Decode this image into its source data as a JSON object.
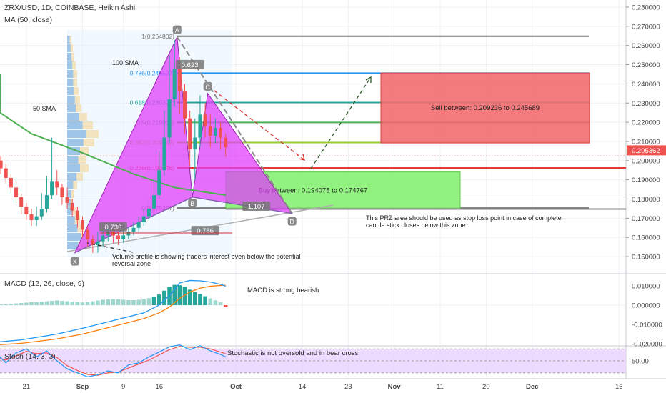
{
  "header": {
    "symbol_line": "ZRX/USD, 1D, COINBASE, Heikin Ashi",
    "indicator_line": "MA (50, close)"
  },
  "colors": {
    "up": "#26a69a",
    "down": "#ef5350",
    "harmonic_fill": "#e040fb",
    "sell_box": "#f26b6f",
    "buy_box": "#7ef06a",
    "ma50": "#4caf50",
    "fib_0786": "#2196f3",
    "fib_0618": "#26a69a",
    "fib_05": "#4caf50",
    "fib_0382": "#9acd32",
    "fib_0236": "#e53935",
    "fib_1": "#787878",
    "price_tag": "#ef5350",
    "stoch_bg": "#e6ccff"
  },
  "chart_data": [
    {
      "type": "candlestick",
      "title": "ZRX/USD, 1D, COINBASE, Heikin Ashi",
      "ylim": [
        0.141,
        0.284
      ],
      "y_ticks": [
        "0.280000",
        "0.270000",
        "0.260000",
        "0.250000",
        "0.240000",
        "0.230000",
        "0.220000",
        "0.210000",
        "0.200000",
        "0.190000",
        "0.180000",
        "0.170000",
        "0.160000",
        "0.150000"
      ],
      "y_tick_values": [
        0.28,
        0.27,
        0.26,
        0.25,
        0.24,
        0.23,
        0.22,
        0.21,
        0.2,
        0.19,
        0.18,
        0.17,
        0.16,
        0.15
      ],
      "x_ticks": [
        "21",
        "Sep",
        "9",
        "16",
        "Oct",
        "14",
        "23",
        "Nov",
        "11",
        "20",
        "Dec",
        "16"
      ],
      "x_tick_days": [
        -11,
        0,
        8,
        15,
        30,
        43,
        52,
        61,
        70,
        79,
        88,
        105
      ],
      "current_price": "0.205362",
      "current_price_value": 0.205362,
      "candles": [
        {
          "d": -19,
          "o": 0.195,
          "c": 0.2,
          "h": 0.203,
          "l": 0.193
        },
        {
          "d": -18,
          "o": 0.2,
          "c": 0.203,
          "h": 0.205,
          "l": 0.197
        },
        {
          "d": -17,
          "o": 0.203,
          "c": 0.2,
          "h": 0.206,
          "l": 0.197
        },
        {
          "d": -16,
          "o": 0.2,
          "c": 0.196,
          "h": 0.202,
          "l": 0.193
        },
        {
          "d": -15,
          "o": 0.196,
          "c": 0.191,
          "h": 0.198,
          "l": 0.188
        },
        {
          "d": -14,
          "o": 0.191,
          "c": 0.186,
          "h": 0.193,
          "l": 0.183
        },
        {
          "d": -13,
          "o": 0.186,
          "c": 0.181,
          "h": 0.189,
          "l": 0.178
        },
        {
          "d": -12,
          "o": 0.181,
          "c": 0.176,
          "h": 0.183,
          "l": 0.172
        },
        {
          "d": -11,
          "o": 0.176,
          "c": 0.172,
          "h": 0.178,
          "l": 0.169
        },
        {
          "d": -10,
          "o": 0.172,
          "c": 0.169,
          "h": 0.175,
          "l": 0.166
        },
        {
          "d": -9,
          "o": 0.169,
          "c": 0.171,
          "h": 0.176,
          "l": 0.166
        },
        {
          "d": -8,
          "o": 0.171,
          "c": 0.175,
          "h": 0.183,
          "l": 0.169
        },
        {
          "d": -7,
          "o": 0.175,
          "c": 0.182,
          "h": 0.192,
          "l": 0.173
        },
        {
          "d": -6,
          "o": 0.182,
          "c": 0.189,
          "h": 0.212,
          "l": 0.18
        },
        {
          "d": -5,
          "o": 0.189,
          "c": 0.186,
          "h": 0.195,
          "l": 0.182
        },
        {
          "d": -4,
          "o": 0.186,
          "c": 0.181,
          "h": 0.188,
          "l": 0.177
        },
        {
          "d": -3,
          "o": 0.181,
          "c": 0.178,
          "h": 0.186,
          "l": 0.175
        },
        {
          "d": -2,
          "o": 0.178,
          "c": 0.174,
          "h": 0.18,
          "l": 0.171
        },
        {
          "d": -1,
          "o": 0.174,
          "c": 0.169,
          "h": 0.176,
          "l": 0.165
        },
        {
          "d": 0,
          "o": 0.169,
          "c": 0.164,
          "h": 0.171,
          "l": 0.16
        },
        {
          "d": 1,
          "o": 0.164,
          "c": 0.159,
          "h": 0.166,
          "l": 0.155
        },
        {
          "d": 2,
          "o": 0.159,
          "c": 0.156,
          "h": 0.161,
          "l": 0.152
        },
        {
          "d": 3,
          "o": 0.156,
          "c": 0.158,
          "h": 0.163,
          "l": 0.152
        },
        {
          "d": 4,
          "o": 0.158,
          "c": 0.161,
          "h": 0.165,
          "l": 0.155
        },
        {
          "d": 5,
          "o": 0.161,
          "c": 0.163,
          "h": 0.167,
          "l": 0.158
        },
        {
          "d": 6,
          "o": 0.163,
          "c": 0.161,
          "h": 0.165,
          "l": 0.157
        },
        {
          "d": 7,
          "o": 0.161,
          "c": 0.159,
          "h": 0.163,
          "l": 0.156
        },
        {
          "d": 8,
          "o": 0.159,
          "c": 0.161,
          "h": 0.164,
          "l": 0.157
        },
        {
          "d": 9,
          "o": 0.161,
          "c": 0.163,
          "h": 0.165,
          "l": 0.159
        },
        {
          "d": 10,
          "o": 0.163,
          "c": 0.165,
          "h": 0.168,
          "l": 0.161
        },
        {
          "d": 11,
          "o": 0.165,
          "c": 0.168,
          "h": 0.171,
          "l": 0.163
        },
        {
          "d": 12,
          "o": 0.168,
          "c": 0.171,
          "h": 0.175,
          "l": 0.166
        },
        {
          "d": 13,
          "o": 0.171,
          "c": 0.175,
          "h": 0.18,
          "l": 0.169
        },
        {
          "d": 14,
          "o": 0.175,
          "c": 0.182,
          "h": 0.19,
          "l": 0.173
        },
        {
          "d": 15,
          "o": 0.182,
          "c": 0.195,
          "h": 0.205,
          "l": 0.18
        },
        {
          "d": 16,
          "o": 0.195,
          "c": 0.212,
          "h": 0.226,
          "l": 0.192
        },
        {
          "d": 17,
          "o": 0.212,
          "c": 0.232,
          "h": 0.255,
          "l": 0.209
        },
        {
          "d": 18,
          "o": 0.232,
          "c": 0.248,
          "h": 0.263,
          "l": 0.228
        },
        {
          "d": 19,
          "o": 0.248,
          "c": 0.236,
          "h": 0.254,
          "l": 0.224
        },
        {
          "d": 20,
          "o": 0.236,
          "c": 0.222,
          "h": 0.24,
          "l": 0.214
        },
        {
          "d": 21,
          "o": 0.222,
          "c": 0.206,
          "h": 0.226,
          "l": 0.197
        },
        {
          "d": 22,
          "o": 0.206,
          "c": 0.212,
          "h": 0.222,
          "l": 0.19
        },
        {
          "d": 23,
          "o": 0.212,
          "c": 0.224,
          "h": 0.234,
          "l": 0.207
        },
        {
          "d": 24,
          "o": 0.224,
          "c": 0.218,
          "h": 0.23,
          "l": 0.212
        },
        {
          "d": 25,
          "o": 0.218,
          "c": 0.213,
          "h": 0.224,
          "l": 0.207
        },
        {
          "d": 26,
          "o": 0.213,
          "c": 0.217,
          "h": 0.222,
          "l": 0.209
        },
        {
          "d": 27,
          "o": 0.217,
          "c": 0.212,
          "h": 0.22,
          "l": 0.206
        },
        {
          "d": 28,
          "o": 0.212,
          "c": 0.207,
          "h": 0.214,
          "l": 0.202
        }
      ],
      "ma50": [
        {
          "d": -40,
          "v": 0.245
        },
        {
          "d": -30,
          "v": 0.236
        },
        {
          "d": -20,
          "v": 0.225
        },
        {
          "d": -10,
          "v": 0.214
        },
        {
          "d": 0,
          "v": 0.204
        },
        {
          "d": 10,
          "v": 0.193
        },
        {
          "d": 18,
          "v": 0.186
        },
        {
          "d": 28,
          "v": 0.182
        }
      ],
      "harmonic": {
        "X": {
          "d": -1.5,
          "v": 0.152
        },
        "A": {
          "d": 18.5,
          "v": 0.2645
        },
        "B": {
          "d": 21.5,
          "v": 0.181
        },
        "C": {
          "d": 24.5,
          "v": 0.235
        },
        "D": {
          "d": 41,
          "v": 0.1725
        },
        "labels": [
          "X",
          "A",
          "B",
          "C",
          "D"
        ],
        "ratio_labels": [
          {
            "text": "0.736",
            "d": 6,
            "v": 0.165
          },
          {
            "text": "0.623",
            "d": 21,
            "v": 0.2495
          },
          {
            "text": "1.107",
            "d": 34,
            "v": 0.1757
          },
          {
            "text": "0.786",
            "d": 24,
            "v": 0.163
          }
        ]
      },
      "fib_levels": [
        {
          "label": "1(0.264802)",
          "value": 0.2648,
          "color_key": "fib_1"
        },
        {
          "label": "0.786(0.245597)",
          "value": 0.2456,
          "color_key": "fib_0786"
        },
        {
          "label": "0.618(0.230302)",
          "value": 0.2303,
          "color_key": "fib_0618"
        },
        {
          "label": "0.5(0.219915)",
          "value": 0.2199,
          "color_key": "fib_05"
        },
        {
          "label": "0.382(0.209342)",
          "value": 0.2094,
          "color_key": "fib_0382"
        },
        {
          "label": "0.236(0.196246)",
          "value": 0.1962,
          "color_key": "fib_0236"
        },
        {
          "label": "0(0.175257)",
          "value": 0.1753,
          "color_key": "fib_1"
        }
      ],
      "sell_zone": {
        "text": "Sell between: 0.209236 to 0.245689",
        "top": 0.2457,
        "bottom": 0.2092,
        "d_from": 48,
        "d_to": 82
      },
      "buy_zone": {
        "text": "Buy between: 0.194078 to 0.174767",
        "top": 0.1941,
        "bottom": 0.1748,
        "d_from": 28,
        "d_to": 66
      },
      "annotations": {
        "sma100": "100 SMA",
        "sma50": "50 SMA",
        "prz_note": "This PRZ area should be used as stop loss point in case of complete candle stick closes below this zone.",
        "prz_note_lines": [
          "This PRZ area should be used as stop loss point in case of complete",
          "candle stick closes below this zone."
        ],
        "volume_note_lines": [
          "Volume profile is showing traders interest even below the potential",
          "reversal zone"
        ]
      }
    },
    {
      "type": "bar",
      "title": "MACD (12, 26, close, 9)",
      "ylim": [
        -0.022,
        0.015
      ],
      "y_ticks": [
        "0.010000",
        "0.000000",
        "-0.010000",
        "-0.020000"
      ],
      "y_tick_values": [
        0.01,
        0.0,
        -0.01,
        -0.02
      ],
      "annotation": "MACD is strong bearish",
      "hist": [
        {
          "d": -19,
          "v": 0.0006
        },
        {
          "d": -18,
          "v": 0.0008
        },
        {
          "d": -17,
          "v": 0.0006
        },
        {
          "d": -16,
          "v": 0.0004
        },
        {
          "d": -15,
          "v": 0.0005
        },
        {
          "d": -14,
          "v": 0.0007
        },
        {
          "d": -13,
          "v": 0.0009
        },
        {
          "d": -12,
          "v": 0.0011
        },
        {
          "d": -11,
          "v": 0.0013
        },
        {
          "d": -10,
          "v": 0.0015
        },
        {
          "d": -9,
          "v": 0.0016
        },
        {
          "d": -8,
          "v": 0.0018
        },
        {
          "d": -7,
          "v": 0.002
        },
        {
          "d": -6,
          "v": 0.0022
        },
        {
          "d": -5,
          "v": 0.0024
        },
        {
          "d": -4,
          "v": 0.0022
        },
        {
          "d": -3,
          "v": 0.002
        },
        {
          "d": -2,
          "v": 0.0018
        },
        {
          "d": -1,
          "v": 0.0016
        },
        {
          "d": 0,
          "v": 0.0014
        },
        {
          "d": 1,
          "v": 0.0016
        },
        {
          "d": 2,
          "v": 0.002
        },
        {
          "d": 3,
          "v": 0.0024
        },
        {
          "d": 4,
          "v": 0.0028
        },
        {
          "d": 5,
          "v": 0.003
        },
        {
          "d": 6,
          "v": 0.0031
        },
        {
          "d": 7,
          "v": 0.003
        },
        {
          "d": 8,
          "v": 0.0028
        },
        {
          "d": 9,
          "v": 0.0026
        },
        {
          "d": 10,
          "v": 0.0026
        },
        {
          "d": 11,
          "v": 0.0028
        },
        {
          "d": 12,
          "v": 0.0032
        },
        {
          "d": 13,
          "v": 0.0036
        },
        {
          "d": 14,
          "v": 0.0042
        },
        {
          "d": 15,
          "v": 0.0055
        },
        {
          "d": 16,
          "v": 0.0075
        },
        {
          "d": 17,
          "v": 0.0095
        },
        {
          "d": 18,
          "v": 0.0105
        },
        {
          "d": 19,
          "v": 0.0103
        },
        {
          "d": 20,
          "v": 0.0095
        },
        {
          "d": 21,
          "v": 0.008
        },
        {
          "d": 22,
          "v": 0.0068
        },
        {
          "d": 23,
          "v": 0.0058
        },
        {
          "d": 24,
          "v": 0.0046
        },
        {
          "d": 25,
          "v": 0.0035
        },
        {
          "d": 26,
          "v": 0.0025
        },
        {
          "d": 27,
          "v": 0.0014
        },
        {
          "d": 28,
          "v": -0.0008
        }
      ],
      "macd_line": [
        {
          "d": -19,
          "v": -0.019
        },
        {
          "d": -12,
          "v": -0.018
        },
        {
          "d": -5,
          "v": -0.015
        },
        {
          "d": 0,
          "v": -0.012
        },
        {
          "d": 6,
          "v": -0.008
        },
        {
          "d": 12,
          "v": -0.004
        },
        {
          "d": 15,
          "v": 0.0
        },
        {
          "d": 17,
          "v": 0.005
        },
        {
          "d": 19,
          "v": 0.0115
        },
        {
          "d": 21,
          "v": 0.0128
        },
        {
          "d": 23,
          "v": 0.0126
        },
        {
          "d": 25,
          "v": 0.012
        },
        {
          "d": 27,
          "v": 0.0108
        },
        {
          "d": 28,
          "v": 0.0098
        }
      ],
      "signal_line": [
        {
          "d": -19,
          "v": -0.0205
        },
        {
          "d": -12,
          "v": -0.0198
        },
        {
          "d": -5,
          "v": -0.0175
        },
        {
          "d": 0,
          "v": -0.015
        },
        {
          "d": 6,
          "v": -0.011
        },
        {
          "d": 12,
          "v": -0.007
        },
        {
          "d": 15,
          "v": -0.004
        },
        {
          "d": 17,
          "v": -0.001
        },
        {
          "d": 19,
          "v": 0.0035
        },
        {
          "d": 21,
          "v": 0.0068
        },
        {
          "d": 23,
          "v": 0.0088
        },
        {
          "d": 25,
          "v": 0.0098
        },
        {
          "d": 27,
          "v": 0.0102
        },
        {
          "d": 28,
          "v": 0.0103
        }
      ]
    },
    {
      "type": "line",
      "title": "Stoch (14, 3, 3)",
      "ylim": [
        0,
        100
      ],
      "y_ticks": [
        "50.00"
      ],
      "y_tick_values": [
        50
      ],
      "bands": [
        20,
        80
      ],
      "annotation": "Stochastic is not oversold and in bear cross",
      "k_line": [
        {
          "d": -19,
          "v": 55
        },
        {
          "d": -17,
          "v": 60
        },
        {
          "d": -15,
          "v": 45
        },
        {
          "d": -13,
          "v": 70
        },
        {
          "d": -11,
          "v": 80
        },
        {
          "d": -9,
          "v": 60
        },
        {
          "d": -7,
          "v": 75
        },
        {
          "d": -5,
          "v": 50
        },
        {
          "d": -3,
          "v": 30
        },
        {
          "d": -1,
          "v": 20
        },
        {
          "d": 1,
          "v": 10
        },
        {
          "d": 3,
          "v": 15
        },
        {
          "d": 5,
          "v": 25
        },
        {
          "d": 7,
          "v": 20
        },
        {
          "d": 9,
          "v": 40
        },
        {
          "d": 11,
          "v": 45
        },
        {
          "d": 13,
          "v": 60
        },
        {
          "d": 15,
          "v": 72
        },
        {
          "d": 17,
          "v": 85
        },
        {
          "d": 19,
          "v": 90
        },
        {
          "d": 21,
          "v": 78
        },
        {
          "d": 23,
          "v": 88
        },
        {
          "d": 25,
          "v": 75
        },
        {
          "d": 27,
          "v": 66
        },
        {
          "d": 28,
          "v": 60
        }
      ],
      "d_line": [
        {
          "d": -19,
          "v": 58
        },
        {
          "d": -17,
          "v": 56
        },
        {
          "d": -15,
          "v": 52
        },
        {
          "d": -13,
          "v": 62
        },
        {
          "d": -11,
          "v": 74
        },
        {
          "d": -9,
          "v": 68
        },
        {
          "d": -7,
          "v": 70
        },
        {
          "d": -5,
          "v": 58
        },
        {
          "d": -3,
          "v": 38
        },
        {
          "d": -1,
          "v": 26
        },
        {
          "d": 1,
          "v": 16
        },
        {
          "d": 3,
          "v": 14
        },
        {
          "d": 5,
          "v": 20
        },
        {
          "d": 7,
          "v": 22
        },
        {
          "d": 9,
          "v": 32
        },
        {
          "d": 11,
          "v": 42
        },
        {
          "d": 13,
          "v": 52
        },
        {
          "d": 15,
          "v": 65
        },
        {
          "d": 17,
          "v": 78
        },
        {
          "d": 19,
          "v": 86
        },
        {
          "d": 21,
          "v": 84
        },
        {
          "d": 23,
          "v": 84
        },
        {
          "d": 25,
          "v": 80
        },
        {
          "d": 27,
          "v": 72
        },
        {
          "d": 28,
          "v": 68
        }
      ]
    }
  ]
}
